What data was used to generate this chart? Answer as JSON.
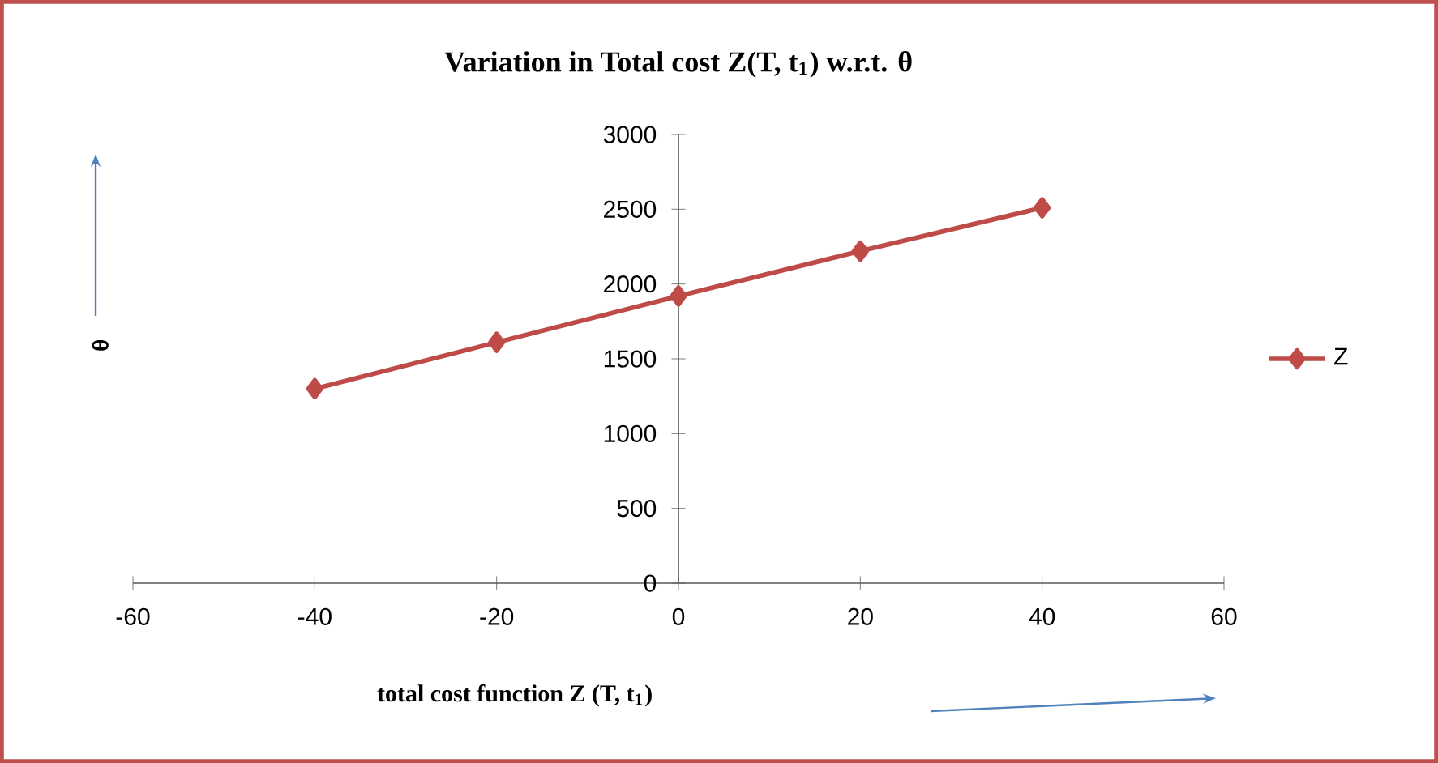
{
  "chart_data": {
    "type": "line",
    "title": "Variation in Total cost Z(T, t$_{1}$) w.r.t. θ",
    "xlabel": "total cost function Z (T, t$_{1}$)",
    "ylabel": "θ",
    "x": [
      -40,
      -20,
      0,
      20,
      40
    ],
    "series": [
      {
        "name": "Z",
        "color": "#be4b48",
        "values": [
          1300,
          1610,
          1920,
          2220,
          2510
        ]
      }
    ],
    "xlim": [
      -60,
      60
    ],
    "xticks": [
      -60,
      -40,
      -20,
      0,
      20,
      40,
      60
    ],
    "ylim": [
      0,
      3000
    ],
    "yticks": [
      0,
      500,
      1000,
      1500,
      2000,
      2500,
      3000
    ],
    "grid": false,
    "legend": "right",
    "marker": "diamond",
    "line_style": "solid"
  }
}
